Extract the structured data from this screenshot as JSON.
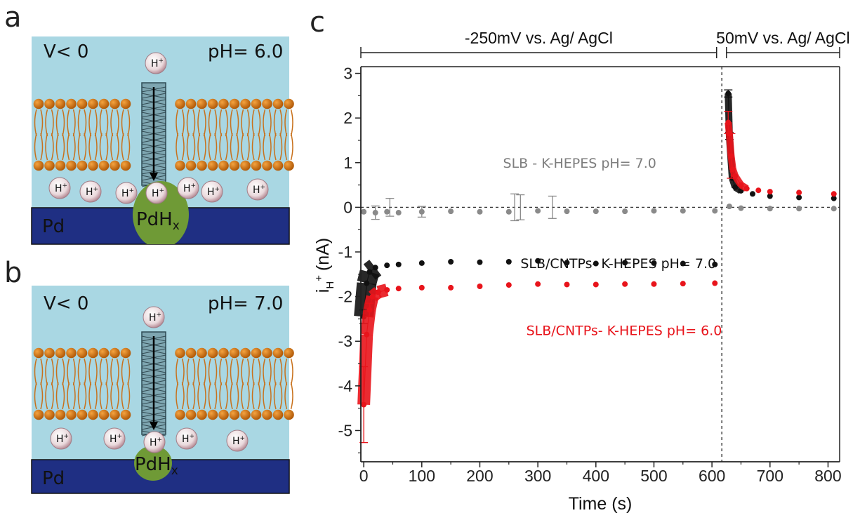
{
  "panels": {
    "a": {
      "label": "a",
      "voltage": "V< 0",
      "ph": "pH= 6.0",
      "ion": "H",
      "ion_sup": "+",
      "electrode": "Pd",
      "hydride": "PdH",
      "hydride_sub": "x"
    },
    "b": {
      "label": "b",
      "voltage": "V< 0",
      "ph": "pH= 7.0",
      "ion": "H",
      "ion_sup": "+",
      "electrode": "Pd",
      "hydride": "PdH",
      "hydride_sub": "x"
    },
    "c": {
      "label": "c"
    }
  },
  "colors": {
    "water": "#a9d7e3",
    "lipid_head": "#d9730d",
    "electrode": "#1f2f83",
    "hydride": "#6f9a36",
    "series_gray": "#8a8a8a",
    "series_black": "#111111",
    "series_red": "#e8141b"
  },
  "chart_data": {
    "type": "scatter",
    "xlabel": "Time (s)",
    "ylabel": "i",
    "ylabel_sub": "H",
    "ylabel_sup": "+",
    "ylabel_unit": "(nA)",
    "xlim": [
      -5,
      820
    ],
    "ylim": [
      -5.7,
      3.15
    ],
    "xticks": [
      0,
      100,
      200,
      300,
      400,
      500,
      600,
      700,
      800
    ],
    "yticks": [
      3,
      2,
      1,
      0,
      -1,
      -2,
      -3,
      -4,
      -5
    ],
    "grid": false,
    "reference_lines": [
      {
        "axis": "y",
        "value": 0,
        "style": "dashed"
      },
      {
        "axis": "x",
        "value": 617,
        "style": "dashed"
      }
    ],
    "spans": [
      {
        "label": "-250mV vs. Ag/ AgCl",
        "from": -5,
        "to": 608
      },
      {
        "label": "50mV vs. Ag/ AgCl",
        "from": 625,
        "to": 820
      }
    ],
    "series": [
      {
        "name": "SLB - K-HEPES pH= 7.0",
        "color": "#8a8a8a",
        "label_at": [
          240,
          1.0
        ],
        "points": [
          [
            0,
            -0.1
          ],
          [
            20,
            -0.12
          ],
          [
            40,
            -0.1
          ],
          [
            60,
            -0.12
          ],
          [
            100,
            -0.1
          ],
          [
            150,
            -0.09
          ],
          [
            200,
            -0.1
          ],
          [
            250,
            -0.1
          ],
          [
            300,
            -0.08
          ],
          [
            350,
            -0.09
          ],
          [
            400,
            -0.09
          ],
          [
            450,
            -0.09
          ],
          [
            500,
            -0.08
          ],
          [
            550,
            -0.08
          ],
          [
            605,
            -0.08
          ],
          [
            630,
            0.02
          ],
          [
            650,
            -0.02
          ],
          [
            700,
            -0.03
          ],
          [
            750,
            -0.03
          ],
          [
            810,
            -0.03
          ]
        ],
        "errors": [
          [
            20,
            0.15
          ],
          [
            45,
            0.2
          ],
          [
            100,
            0.12
          ],
          [
            260,
            0.3
          ],
          [
            270,
            0.28
          ],
          [
            325,
            0.25
          ]
        ]
      },
      {
        "name": "SLB/CNTPs- K-HEPES pH= 7.0",
        "color": "#111111",
        "label_at": [
          270,
          -1.25
        ],
        "points": [
          [
            0,
            -2.45
          ],
          [
            5,
            -1.7
          ],
          [
            10,
            -1.45
          ],
          [
            20,
            -1.35
          ],
          [
            40,
            -1.3
          ],
          [
            60,
            -1.28
          ],
          [
            100,
            -1.25
          ],
          [
            150,
            -1.22
          ],
          [
            200,
            -1.23
          ],
          [
            250,
            -1.22
          ],
          [
            300,
            -1.2
          ],
          [
            350,
            -1.24
          ],
          [
            400,
            -1.26
          ],
          [
            450,
            -1.24
          ],
          [
            500,
            -1.25
          ],
          [
            550,
            -1.26
          ],
          [
            605,
            -1.28
          ],
          [
            628,
            2.55
          ],
          [
            630,
            1.6
          ],
          [
            635,
            0.65
          ],
          [
            640,
            0.45
          ],
          [
            650,
            0.37
          ],
          [
            670,
            0.3
          ],
          [
            700,
            0.25
          ],
          [
            750,
            0.22
          ],
          [
            810,
            0.2
          ]
        ],
        "errors": [
          [
            0,
            0.15
          ],
          [
            628,
            0.08
          ],
          [
            630,
            0.08
          ]
        ]
      },
      {
        "name": "SLB/CNTPs- K-HEPES pH= 6.0",
        "color": "#e8141b",
        "label_at": [
          280,
          -2.75
        ],
        "points": [
          [
            0,
            -4.42
          ],
          [
            5,
            -2.85
          ],
          [
            10,
            -2.3
          ],
          [
            15,
            -2.0
          ],
          [
            25,
            -1.9
          ],
          [
            40,
            -1.85
          ],
          [
            60,
            -1.82
          ],
          [
            100,
            -1.8
          ],
          [
            150,
            -1.8
          ],
          [
            200,
            -1.77
          ],
          [
            250,
            -1.74
          ],
          [
            300,
            -1.72
          ],
          [
            350,
            -1.73
          ],
          [
            400,
            -1.73
          ],
          [
            450,
            -1.72
          ],
          [
            500,
            -1.72
          ],
          [
            550,
            -1.71
          ],
          [
            605,
            -1.7
          ],
          [
            628,
            1.9
          ],
          [
            630,
            1.65
          ],
          [
            633,
            1.15
          ],
          [
            636,
            0.85
          ],
          [
            640,
            0.7
          ],
          [
            650,
            0.5
          ],
          [
            660,
            0.42
          ],
          [
            680,
            0.38
          ],
          [
            700,
            0.35
          ],
          [
            750,
            0.33
          ],
          [
            810,
            0.3
          ]
        ],
        "errors": [
          [
            0,
            0.85
          ],
          [
            10,
            0.15
          ],
          [
            628,
            0.25
          ],
          [
            633,
            0.5
          ]
        ]
      }
    ]
  }
}
